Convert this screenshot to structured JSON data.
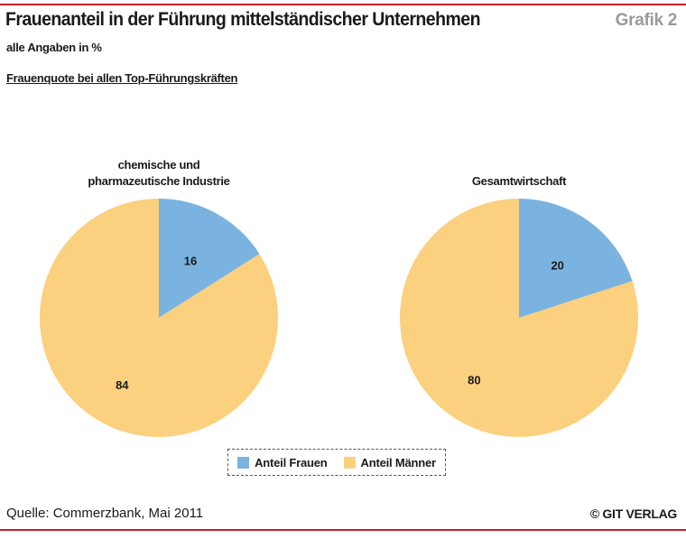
{
  "header": {
    "title": "Frauenanteil in der Führung mittelständischer Unternehmen",
    "grafik_label": "Grafik 2",
    "subtitle": "alle Angaben in %",
    "section_title": "Frauenquote bei allen Top-Führungskräften"
  },
  "colors": {
    "frauen": "#7ab3e0",
    "maenner": "#fbd07e",
    "rule": "#c0202a"
  },
  "chart_data": [
    {
      "type": "pie",
      "title": "chemische und\npharmazeutische Industrie",
      "slices": [
        {
          "label": "Anteil Frauen",
          "value": 16
        },
        {
          "label": "Anteil Männer",
          "value": 84
        }
      ]
    },
    {
      "type": "pie",
      "title": "Gesamtwirtschaft",
      "slices": [
        {
          "label": "Anteil Frauen",
          "value": 20
        },
        {
          "label": "Anteil Männer",
          "value": 80
        }
      ]
    }
  ],
  "legend": {
    "frauen_label": "Anteil Frauen",
    "maenner_label": "Anteil Männer"
  },
  "footer": {
    "source": "Quelle: Commerzbank, Mai 2011",
    "copyright": "© GIT VERLAG"
  }
}
